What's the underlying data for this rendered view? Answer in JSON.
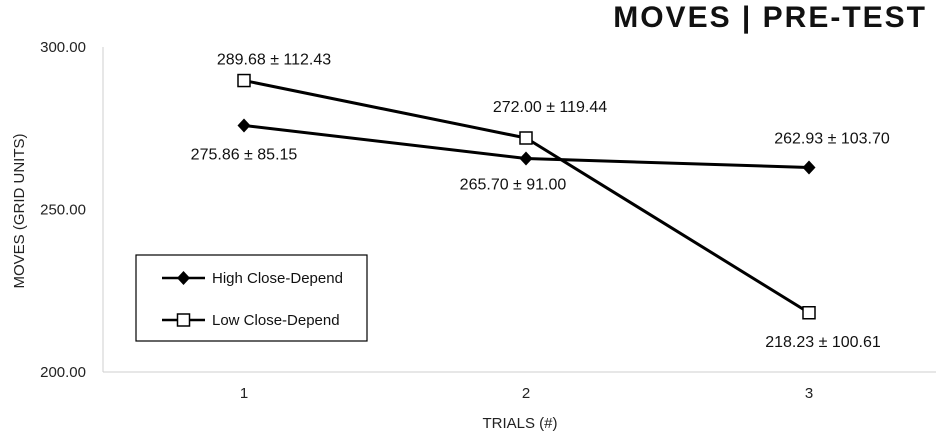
{
  "chart_data": {
    "type": "line",
    "title": "MOVES | PRE-TEST",
    "xlabel": "TRIALS (#)",
    "ylabel": "MOVES (GRID UNITS)",
    "categories": [
      "1",
      "2",
      "3"
    ],
    "ylim": [
      200,
      300
    ],
    "yticks": [
      "200.00",
      "250.00",
      "300.00"
    ],
    "grid": false,
    "legend_position": "bottom-left",
    "series": [
      {
        "name": "High Close-Depend",
        "marker": "filled-diamond",
        "color": "#000000",
        "values": [
          275.86,
          265.7,
          262.93
        ],
        "labels": [
          "275.86 ± 85.15",
          "265.70 ± 91.00",
          "262.93 ± 103.70"
        ]
      },
      {
        "name": "Low Close-Depend",
        "marker": "open-square",
        "color": "#000000",
        "values": [
          289.68,
          272.0,
          218.23
        ],
        "labels": [
          "289.68 ± 112.43",
          "272.00 ± 119.44",
          "218.23 ± 100.61"
        ]
      }
    ]
  }
}
